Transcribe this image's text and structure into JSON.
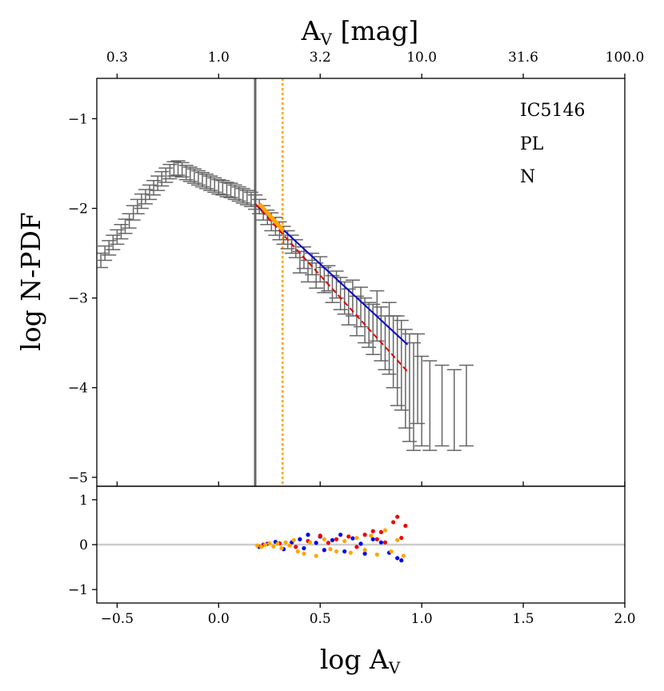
{
  "chart_data": [
    {
      "type": "scatter",
      "panel": "main",
      "top_axis_title": "A",
      "top_axis_title_sub": "V",
      "top_axis_title_rest": " [mag]",
      "top_axis_tick_values": [
        -0.5,
        0.0,
        0.5,
        1.0,
        1.5,
        2.0
      ],
      "top_axis_tick_labels": [
        "0.3",
        "1.0",
        "3.2",
        "10.0",
        "31.6",
        "100.0"
      ],
      "ylabel": "log N-PDF",
      "ylim": [
        -5.1,
        -0.55
      ],
      "y_ticks": [
        -1,
        -2,
        -3,
        -4,
        -5
      ],
      "y_tick_labels": [
        "−1",
        "−2",
        "−3",
        "−4",
        "−5"
      ],
      "annotations": [
        "IC5146",
        "PL",
        "N"
      ],
      "vertical_lines": [
        {
          "name": "solid-threshold",
          "x": 0.18,
          "color": "#666666",
          "style": "solid"
        },
        {
          "name": "dotted-threshold",
          "x": 0.315,
          "color": "#ffa500",
          "style": "dotted"
        }
      ],
      "pdf_points": {
        "color": "#666666",
        "x": [
          -0.58,
          -0.56,
          -0.54,
          -0.52,
          -0.5,
          -0.48,
          -0.46,
          -0.44,
          -0.42,
          -0.4,
          -0.38,
          -0.36,
          -0.34,
          -0.32,
          -0.3,
          -0.28,
          -0.26,
          -0.24,
          -0.22,
          -0.2,
          -0.18,
          -0.16,
          -0.14,
          -0.12,
          -0.1,
          -0.08,
          -0.06,
          -0.04,
          -0.02,
          0.0,
          0.02,
          0.04,
          0.06,
          0.08,
          0.1,
          0.12,
          0.14,
          0.16,
          0.18,
          0.2,
          0.22,
          0.24,
          0.26,
          0.28,
          0.3,
          0.32,
          0.34,
          0.36,
          0.38,
          0.4,
          0.42,
          0.44,
          0.46,
          0.48,
          0.5,
          0.52,
          0.54,
          0.56,
          0.58,
          0.6,
          0.62,
          0.64,
          0.66,
          0.68,
          0.7,
          0.72,
          0.74,
          0.76,
          0.78,
          0.8,
          0.82,
          0.84,
          0.86,
          0.88,
          0.9,
          0.92,
          0.94,
          0.96,
          0.98,
          1.0,
          1.04,
          1.1,
          1.16,
          1.22
        ],
        "y": [
          -2.58,
          -2.5,
          -2.44,
          -2.38,
          -2.32,
          -2.26,
          -2.2,
          -2.14,
          -2.05,
          -1.98,
          -1.92,
          -1.87,
          -1.82,
          -1.77,
          -1.72,
          -1.67,
          -1.63,
          -1.59,
          -1.56,
          -1.55,
          -1.57,
          -1.6,
          -1.62,
          -1.64,
          -1.66,
          -1.68,
          -1.7,
          -1.72,
          -1.74,
          -1.76,
          -1.77,
          -1.79,
          -1.8,
          -1.82,
          -1.84,
          -1.86,
          -1.88,
          -1.9,
          -1.93,
          -1.98,
          -2.05,
          -2.1,
          -2.15,
          -2.2,
          -2.25,
          -2.3,
          -2.35,
          -2.4,
          -2.45,
          -2.6,
          -2.55,
          -2.7,
          -2.62,
          -2.75,
          -2.68,
          -2.8,
          -2.78,
          -2.9,
          -2.85,
          -2.95,
          -3.0,
          -3.1,
          -3.0,
          -3.2,
          -3.1,
          -3.25,
          -3.3,
          -3.35,
          -3.2,
          -3.4,
          -3.5,
          -3.45,
          -3.6,
          -3.7,
          -3.75,
          -3.9,
          -4.0,
          -4.1,
          -3.9,
          -4.15,
          -4.2,
          -4.2,
          -4.25,
          -4.2
        ],
        "err": [
          0.08,
          0.08,
          0.08,
          0.08,
          0.08,
          0.08,
          0.08,
          0.08,
          0.08,
          0.08,
          0.08,
          0.08,
          0.08,
          0.08,
          0.08,
          0.08,
          0.08,
          0.08,
          0.08,
          0.08,
          0.08,
          0.08,
          0.08,
          0.08,
          0.08,
          0.08,
          0.08,
          0.08,
          0.08,
          0.08,
          0.08,
          0.08,
          0.08,
          0.08,
          0.08,
          0.08,
          0.08,
          0.08,
          0.08,
          0.08,
          0.08,
          0.08,
          0.1,
          0.1,
          0.1,
          0.1,
          0.1,
          0.1,
          0.1,
          0.12,
          0.12,
          0.12,
          0.12,
          0.14,
          0.14,
          0.14,
          0.14,
          0.15,
          0.15,
          0.18,
          0.18,
          0.2,
          0.2,
          0.22,
          0.22,
          0.25,
          0.25,
          0.28,
          0.28,
          0.3,
          0.3,
          0.4,
          0.4,
          0.5,
          0.5,
          0.55,
          0.6,
          0.6,
          0.5,
          0.5,
          0.5,
          0.45,
          0.45,
          0.45
        ]
      },
      "fit_lines": [
        {
          "name": "blue-fit",
          "color": "#0000cc",
          "style": "solid",
          "x": [
            0.18,
            0.93
          ],
          "y": [
            -1.95,
            -3.52
          ]
        },
        {
          "name": "orange-fit",
          "color": "#ffa500",
          "style": "solid",
          "x": [
            0.2,
            0.32
          ],
          "y": [
            -1.95,
            -2.25
          ]
        },
        {
          "name": "red-fit",
          "color": "#dd0000",
          "style": "dashed",
          "x": [
            0.18,
            0.93
          ],
          "y": [
            -1.95,
            -3.82
          ]
        }
      ]
    },
    {
      "type": "scatter",
      "panel": "residuals",
      "xlabel": "log A",
      "xlabel_sub": "V",
      "xlim": [
        -0.6,
        2.0
      ],
      "x_ticks": [
        -0.5,
        0.0,
        0.5,
        1.0,
        1.5,
        2.0
      ],
      "x_tick_labels": [
        "−0.5",
        "0.0",
        "0.5",
        "1.0",
        "1.5",
        "2.0"
      ],
      "ylim": [
        -1.3,
        1.3
      ],
      "y_ticks": [
        1,
        0,
        -1
      ],
      "y_tick_labels": [
        "1",
        "0",
        "−1"
      ],
      "zero_line_color": "#cccccc",
      "series": [
        {
          "name": "blue",
          "color": "#0000ee",
          "x": [
            0.2,
            0.24,
            0.28,
            0.32,
            0.36,
            0.4,
            0.42,
            0.44,
            0.48,
            0.5,
            0.52,
            0.56,
            0.6,
            0.62,
            0.66,
            0.7,
            0.72,
            0.76,
            0.8,
            0.84,
            0.88,
            0.9
          ],
          "y": [
            -0.05,
            0.02,
            0.06,
            -0.1,
            0.05,
            0.12,
            -0.08,
            0.22,
            0.04,
            0.18,
            -0.12,
            0.1,
            0.22,
            -0.15,
            0.14,
            0.02,
            -0.2,
            0.12,
            0.05,
            -0.18,
            -0.3,
            -0.35
          ]
        },
        {
          "name": "red",
          "color": "#ee0000",
          "x": [
            0.22,
            0.3,
            0.38,
            0.44,
            0.5,
            0.54,
            0.58,
            0.64,
            0.68,
            0.72,
            0.76,
            0.78,
            0.8,
            0.82,
            0.86,
            0.88,
            0.9,
            0.92
          ],
          "y": [
            0.0,
            0.03,
            -0.05,
            0.08,
            0.2,
            0.04,
            0.12,
            0.18,
            -0.05,
            0.22,
            0.3,
            0.12,
            0.28,
            0.05,
            0.5,
            0.62,
            0.15,
            0.42
          ]
        },
        {
          "name": "orange",
          "color": "#ffa500",
          "x": [
            0.19,
            0.21,
            0.23,
            0.25,
            0.27,
            0.29,
            0.31,
            0.33,
            0.35,
            0.37,
            0.39,
            0.42,
            0.45,
            0.48,
            0.52,
            0.55,
            0.58,
            0.62,
            0.65,
            0.68,
            0.72,
            0.75,
            0.78,
            0.82,
            0.85,
            0.88,
            0.91
          ],
          "y": [
            -0.02,
            -0.05,
            0.0,
            0.03,
            -0.04,
            0.02,
            -0.08,
            0.05,
            -0.02,
            0.1,
            -0.15,
            -0.2,
            0.05,
            -0.25,
            0.12,
            -0.1,
            -0.15,
            0.08,
            -0.18,
            0.15,
            -0.12,
            0.2,
            -0.22,
            0.32,
            -0.15,
            0.1,
            -0.25
          ]
        }
      ]
    }
  ]
}
